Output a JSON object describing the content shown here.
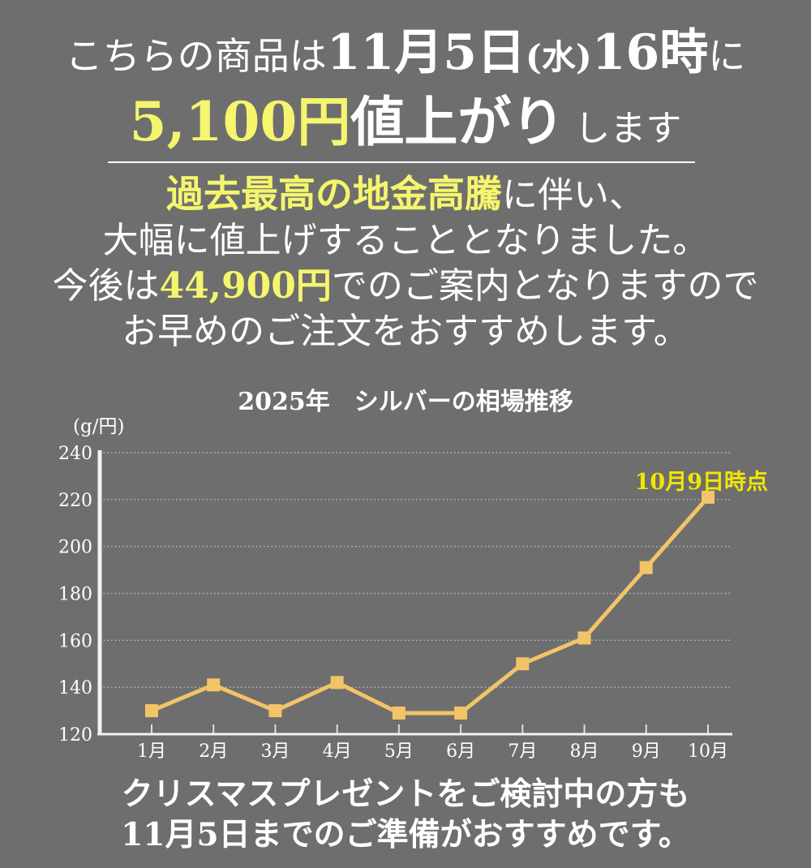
{
  "colors": {
    "background": "#6e6e6e",
    "text_white": "#ffffff",
    "highlight_pale_yellow": "#f5f56e",
    "annotation_bright_yellow": "#f2e600",
    "chart_line_amber": "#f2c468",
    "axis_white": "#f2f2f2"
  },
  "header": {
    "line1": {
      "pre": "こちらの商品は",
      "date": "11月5日",
      "weekday": "(水)",
      "time": "16時",
      "suffix": "に"
    },
    "line2": {
      "price": "5,100円",
      "emphasis": "値上がり",
      "suffix": "します"
    }
  },
  "notice": {
    "line1_highlight": "過去最高の地金高騰",
    "line1_rest": "に伴い、",
    "line2": "大幅に値上げすることとなりました。",
    "line3_pre": "今後は",
    "line3_price": "44,900円",
    "line3_post": "でのご案内となりますので",
    "line4": "お早めのご注文をおすすめします。"
  },
  "chart_data": {
    "type": "line",
    "title": "2025年　シルバーの相場推移",
    "ylabel": "(g/円)",
    "xlabel": "",
    "categories": [
      "1月",
      "2月",
      "3月",
      "4月",
      "5月",
      "6月",
      "7月",
      "8月",
      "9月",
      "10月"
    ],
    "values": [
      130,
      141,
      130,
      142,
      129,
      129,
      150,
      161,
      191,
      221
    ],
    "ylim": [
      120,
      240
    ],
    "yticks": [
      120,
      140,
      160,
      180,
      200,
      220,
      240
    ],
    "annotation": "10月9日時点",
    "annotation_target": "10月",
    "grid": "horizontal-dotted",
    "legend": "none",
    "marker": "square",
    "line_color": "#f2c468"
  },
  "footer": {
    "line1": "クリスマスプレゼントをご検討中の方も",
    "line2": "11月5日までのご準備がおすすめです。"
  }
}
